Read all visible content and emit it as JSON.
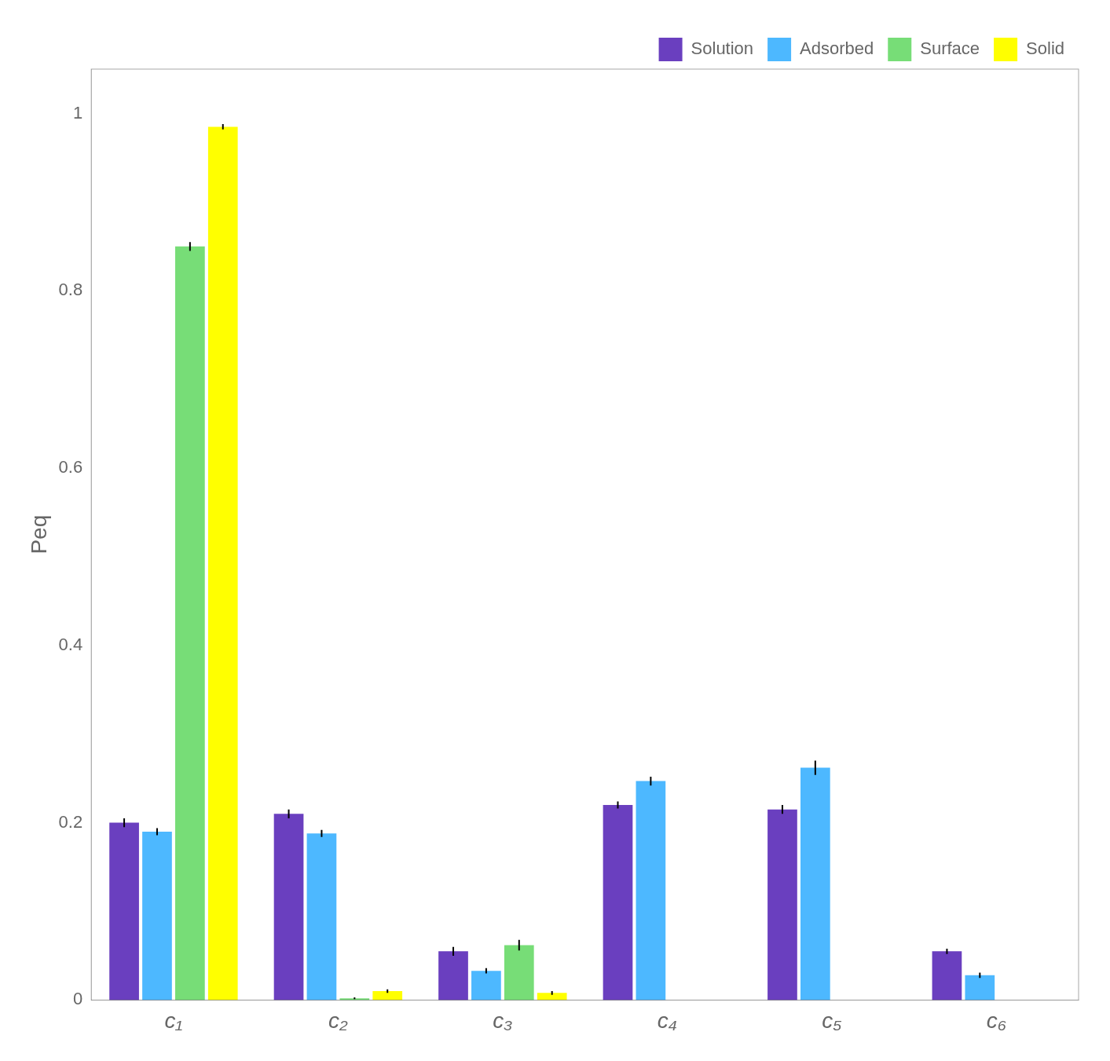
{
  "chart_data": {
    "type": "bar",
    "ylabel": "Peq",
    "categories": [
      "c₁",
      "c₂",
      "c₃",
      "c₄",
      "c₅",
      "c₆"
    ],
    "series": [
      {
        "name": "Solution",
        "color": "#6a3fbf",
        "values": [
          0.2,
          0.21,
          0.055,
          0.22,
          0.215,
          0.055
        ],
        "errors": [
          0.005,
          0.005,
          0.005,
          0.004,
          0.005,
          0.003
        ]
      },
      {
        "name": "Adsorbed",
        "color": "#4db8ff",
        "values": [
          0.19,
          0.188,
          0.033,
          0.247,
          0.262,
          0.028
        ],
        "errors": [
          0.004,
          0.004,
          0.003,
          0.005,
          0.008,
          0.003
        ]
      },
      {
        "name": "Surface",
        "color": "#77dd77",
        "values": [
          0.85,
          0.002,
          0.062,
          0.0,
          0.0,
          0.0
        ],
        "errors": [
          0.005,
          0.001,
          0.006,
          0.0,
          0.0,
          0.0
        ]
      },
      {
        "name": "Solid",
        "color": "#ffff00",
        "values": [
          0.985,
          0.01,
          0.008,
          0.0,
          0.0,
          0.0
        ],
        "errors": [
          0.003,
          0.002,
          0.002,
          0.0,
          0.0,
          0.0
        ]
      }
    ],
    "ylim": [
      0,
      1.05
    ],
    "yticks": [
      0,
      0.2,
      0.4,
      0.6,
      0.8,
      1.0
    ],
    "grid": false,
    "legend": "upper right"
  }
}
